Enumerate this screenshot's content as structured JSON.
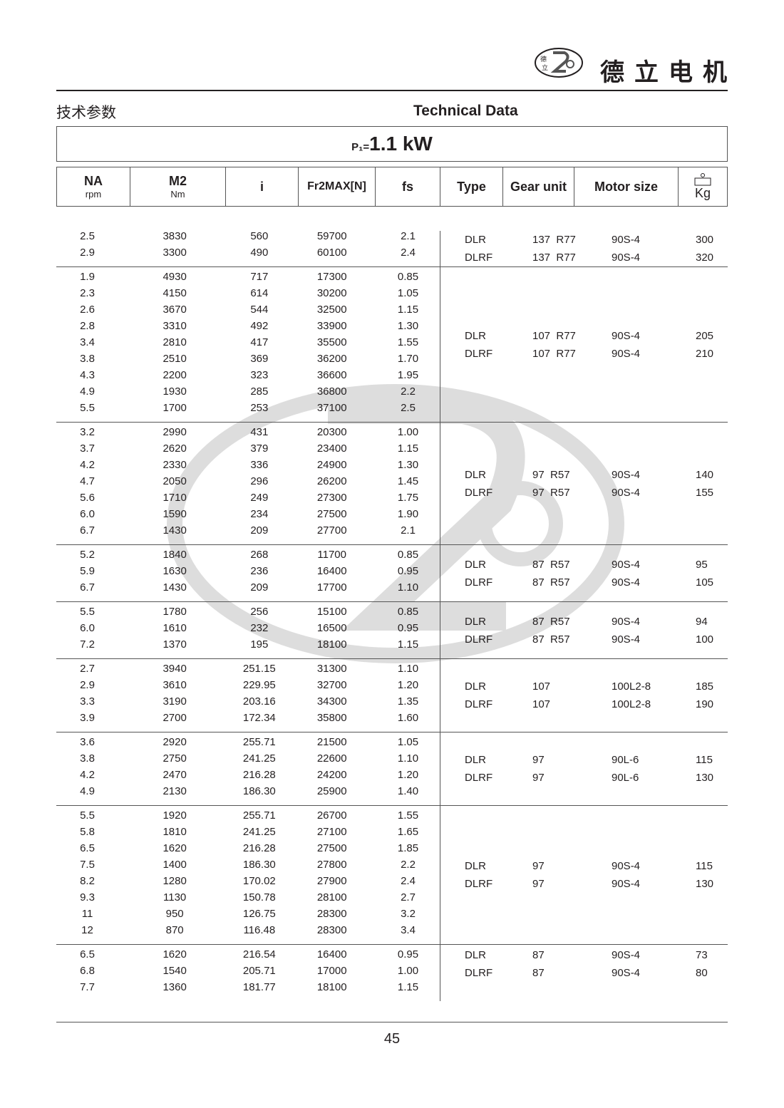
{
  "brand": {
    "logo_text": "德立 De Li Gear Motor",
    "name": "德立电机"
  },
  "titles": {
    "cn": "技术参数",
    "en": "Technical Data"
  },
  "power": {
    "label": "P₁=",
    "value": "1.1 kW"
  },
  "columns": {
    "na": {
      "main": "NA",
      "sub": "rpm"
    },
    "m2": {
      "main": "M2",
      "sub": "Nm"
    },
    "i": {
      "main": "i"
    },
    "fr": {
      "main": "Fr2MAX[N]"
    },
    "fs": {
      "main": "fs"
    },
    "type": {
      "main": "Type"
    },
    "gear": {
      "main": "Gear unit"
    },
    "motor": {
      "main": "Motor size"
    },
    "kg": {
      "main": "Kg",
      "icon": "weight-icon"
    }
  },
  "groups": [
    {
      "rows": [
        [
          "2.5",
          "3830",
          "560",
          "59700",
          "2.1"
        ],
        [
          "2.9",
          "3300",
          "490",
          "60100",
          "2.4"
        ]
      ],
      "right": [
        {
          "type": "DLR",
          "gear": "137  R77",
          "motor": "90S-4",
          "kg": "300"
        },
        {
          "type": "DLRF",
          "gear": "137  R77",
          "motor": "90S-4",
          "kg": "320"
        }
      ]
    },
    {
      "rows": [
        [
          "1.9",
          "4930",
          "717",
          "17300",
          "0.85"
        ],
        [
          "2.3",
          "4150",
          "614",
          "30200",
          "1.05"
        ],
        [
          "2.6",
          "3670",
          "544",
          "32500",
          "1.15"
        ],
        [
          "2.8",
          "3310",
          "492",
          "33900",
          "1.30"
        ],
        [
          "3.4",
          "2810",
          "417",
          "35500",
          "1.55"
        ],
        [
          "3.8",
          "2510",
          "369",
          "36200",
          "1.70"
        ],
        [
          "4.3",
          "2200",
          "323",
          "36600",
          "1.95"
        ],
        [
          "4.9",
          "1930",
          "285",
          "36800",
          "2.2"
        ],
        [
          "5.5",
          "1700",
          "253",
          "37100",
          "2.5"
        ]
      ],
      "right": [
        {
          "type": "DLR",
          "gear": "107  R77",
          "motor": "90S-4",
          "kg": "205"
        },
        {
          "type": "DLRF",
          "gear": "107  R77",
          "motor": "90S-4",
          "kg": "210"
        }
      ]
    },
    {
      "rows": [
        [
          "3.2",
          "2990",
          "431",
          "20300",
          "1.00"
        ],
        [
          "3.7",
          "2620",
          "379",
          "23400",
          "1.15"
        ],
        [
          "4.2",
          "2330",
          "336",
          "24900",
          "1.30"
        ],
        [
          "4.7",
          "2050",
          "296",
          "26200",
          "1.45"
        ],
        [
          "5.6",
          "1710",
          "249",
          "27300",
          "1.75"
        ],
        [
          "6.0",
          "1590",
          "234",
          "27500",
          "1.90"
        ],
        [
          "6.7",
          "1430",
          "209",
          "27700",
          "2.1"
        ]
      ],
      "right": [
        {
          "type": "DLR",
          "gear": "97  R57",
          "motor": "90S-4",
          "kg": "140"
        },
        {
          "type": "DLRF",
          "gear": "97  R57",
          "motor": "90S-4",
          "kg": "155"
        }
      ]
    },
    {
      "rows": [
        [
          "5.2",
          "1840",
          "268",
          "11700",
          "0.85"
        ],
        [
          "5.9",
          "1630",
          "236",
          "16400",
          "0.95"
        ],
        [
          "6.7",
          "1430",
          "209",
          "17700",
          "1.10"
        ]
      ],
      "right": [
        {
          "type": "DLR",
          "gear": "87  R57",
          "motor": "90S-4",
          "kg": "95"
        },
        {
          "type": "DLRF",
          "gear": "87  R57",
          "motor": "90S-4",
          "kg": "105"
        }
      ]
    },
    {
      "rows": [
        [
          "5.5",
          "1780",
          "256",
          "15100",
          "0.85"
        ],
        [
          "6.0",
          "1610",
          "232",
          "16500",
          "0.95"
        ],
        [
          "7.2",
          "1370",
          "195",
          "18100",
          "1.15"
        ]
      ],
      "right": [
        {
          "type": "DLR",
          "gear": "87  R57",
          "motor": "90S-4",
          "kg": "94"
        },
        {
          "type": "DLRF",
          "gear": "87  R57",
          "motor": "90S-4",
          "kg": "100"
        }
      ]
    },
    {
      "rows": [
        [
          "2.7",
          "3940",
          "251.15",
          "31300",
          "1.10"
        ],
        [
          "2.9",
          "3610",
          "229.95",
          "32700",
          "1.20"
        ],
        [
          "3.3",
          "3190",
          "203.16",
          "34300",
          "1.35"
        ],
        [
          "3.9",
          "2700",
          "172.34",
          "35800",
          "1.60"
        ]
      ],
      "right": [
        {
          "type": "DLR",
          "gear": "107",
          "motor": "100L2-8",
          "kg": "185"
        },
        {
          "type": "DLRF",
          "gear": "107",
          "motor": "100L2-8",
          "kg": "190"
        }
      ]
    },
    {
      "rows": [
        [
          "3.6",
          "2920",
          "255.71",
          "21500",
          "1.05"
        ],
        [
          "3.8",
          "2750",
          "241.25",
          "22600",
          "1.10"
        ],
        [
          "4.2",
          "2470",
          "216.28",
          "24200",
          "1.20"
        ],
        [
          "4.9",
          "2130",
          "186.30",
          "25900",
          "1.40"
        ]
      ],
      "right": [
        {
          "type": "DLR",
          "gear": "97",
          "motor": "90L-6",
          "kg": "115"
        },
        {
          "type": "DLRF",
          "gear": "97",
          "motor": "90L-6",
          "kg": "130"
        }
      ]
    },
    {
      "rows": [
        [
          "5.5",
          "1920",
          "255.71",
          "26700",
          "1.55"
        ],
        [
          "5.8",
          "1810",
          "241.25",
          "27100",
          "1.65"
        ],
        [
          "6.5",
          "1620",
          "216.28",
          "27500",
          "1.85"
        ],
        [
          "7.5",
          "1400",
          "186.30",
          "27800",
          "2.2"
        ],
        [
          "8.2",
          "1280",
          "170.02",
          "27900",
          "2.4"
        ],
        [
          "9.3",
          "1130",
          "150.78",
          "28100",
          "2.7"
        ],
        [
          "11",
          "950",
          "126.75",
          "28300",
          "3.2"
        ],
        [
          "12",
          "870",
          "116.48",
          "28300",
          "3.4"
        ]
      ],
      "right": [
        {
          "type": "DLR",
          "gear": "97",
          "motor": "90S-4",
          "kg": "115"
        },
        {
          "type": "DLRF",
          "gear": "97",
          "motor": "90S-4",
          "kg": "130"
        }
      ]
    },
    {
      "rows": [
        [
          "6.5",
          "1620",
          "216.54",
          "16400",
          "0.95"
        ],
        [
          "6.8",
          "1540",
          "205.71",
          "17000",
          "1.00"
        ],
        [
          "7.7",
          "1360",
          "181.77",
          "18100",
          "1.15"
        ]
      ],
      "right": [
        {
          "type": "DLR",
          "gear": "87",
          "motor": "90S-4",
          "kg": "73"
        },
        {
          "type": "DLRF",
          "gear": "87",
          "motor": "90S-4",
          "kg": "80"
        }
      ]
    }
  ],
  "footer": {
    "page": "45"
  }
}
